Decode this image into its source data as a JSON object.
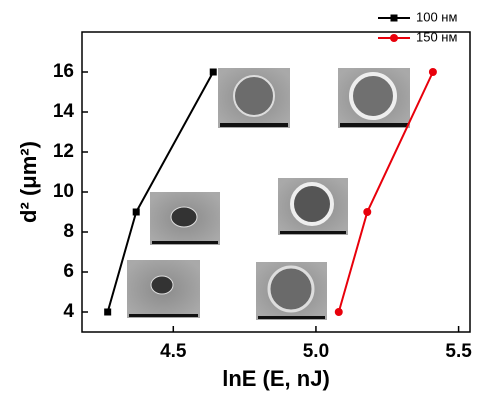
{
  "chart_data": {
    "type": "line",
    "x_label": "lnE (E, nJ)",
    "y_label": "d² (μm²)",
    "xlim": [
      4.18,
      5.54
    ],
    "ylim": [
      3,
      18
    ],
    "xticks": [
      4.5,
      {
        "value": 5,
        "label": "5.0"
      },
      5.5
    ],
    "yticks": [
      4,
      6,
      8,
      10,
      12,
      14,
      16
    ],
    "legend": "top-right",
    "series": [
      {
        "name": "100 нм",
        "color": "#000000",
        "marker": "square",
        "x": [
          4.27,
          4.37,
          4.64
        ],
        "values": [
          4,
          9,
          16
        ]
      },
      {
        "name": "150 нм",
        "color": "#e8000b",
        "marker": "circle",
        "x": [
          5.08,
          5.18,
          5.41
        ],
        "values": [
          4,
          9,
          16
        ]
      }
    ]
  }
}
